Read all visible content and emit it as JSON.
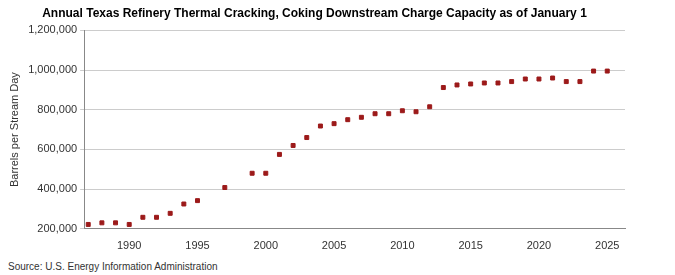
{
  "chart_data": {
    "type": "scatter",
    "title": "Annual Texas Refinery Thermal Cracking, Coking Downstream Charge Capacity as of January 1",
    "y_label": "Barrels per Stream Day",
    "source": "Source: U.S. Energy Information Administration",
    "x": [
      1987,
      1988,
      1989,
      1990,
      1991,
      1992,
      1993,
      1994,
      1995,
      1997,
      1999,
      2000,
      2001,
      2002,
      2003,
      2004,
      2005,
      2006,
      2007,
      2008,
      2009,
      2010,
      2011,
      2012,
      2013,
      2014,
      2015,
      2016,
      2017,
      2018,
      2019,
      2020,
      2021,
      2022,
      2023,
      2024,
      2025
    ],
    "values": [
      222000,
      230000,
      230000,
      222000,
      258000,
      258000,
      278000,
      325000,
      342000,
      408000,
      480000,
      480000,
      575000,
      620000,
      660000,
      718000,
      730000,
      750000,
      762000,
      780000,
      780000,
      795000,
      790000,
      815000,
      912000,
      925000,
      930000,
      935000,
      935000,
      942000,
      955000,
      955000,
      960000,
      942000,
      942000,
      995000,
      995000
    ],
    "color": "#9c1a1a",
    "marker": "square",
    "xlim": [
      1986.7,
      2026.3
    ],
    "xticks": [
      1990,
      1995,
      2000,
      2005,
      2010,
      2015,
      2020,
      2025
    ],
    "ylim": [
      200000,
      1200000
    ],
    "yticks": [
      {
        "value": 200000,
        "label": "200,000"
      },
      {
        "value": 400000,
        "label": "400,000"
      },
      {
        "value": 600000,
        "label": "600,000"
      },
      {
        "value": 800000,
        "label": "800,000"
      },
      {
        "value": 1000000,
        "label": "1,000,000"
      },
      {
        "value": 1200000,
        "label": "1,200,000"
      }
    ],
    "grid": true
  }
}
